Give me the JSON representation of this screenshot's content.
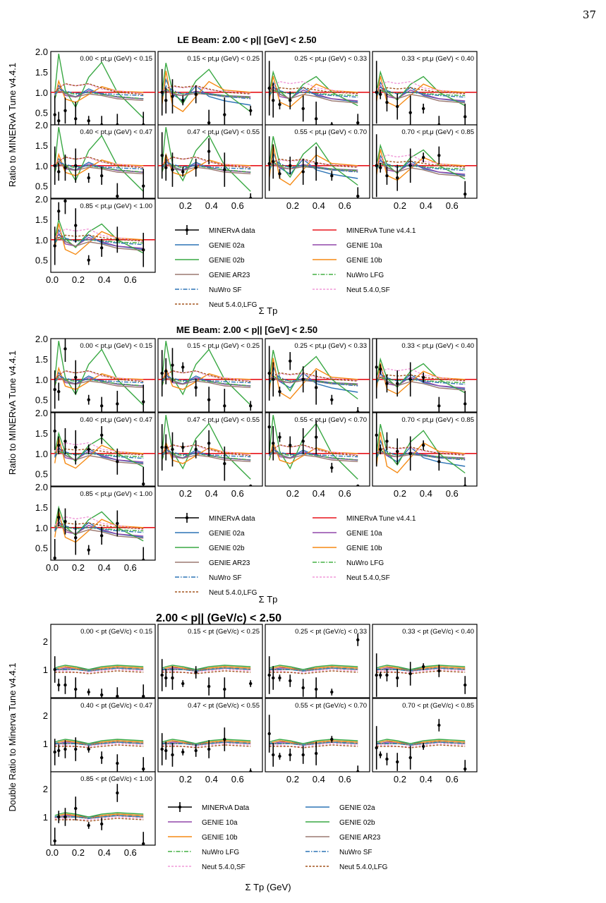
{
  "page_number": "37",
  "chart_data": [
    {
      "type": "line",
      "title": "LE Beam: 2.00 < p|| [GeV] < 2.50",
      "ylabel": "Ratio to MINERvA Tune v4.4.1",
      "xlabel": "Σ Tp",
      "ylim": [
        0.2,
        2.0
      ],
      "xlim": [
        0.0,
        0.78
      ],
      "yticks": [
        "2.0",
        "1.5",
        "1.0",
        "0.5"
      ],
      "xticks": [
        "0.2",
        "0.4",
        "0.6"
      ],
      "xticks_first": [
        "0.0",
        "0.2",
        "0.4",
        "0.6"
      ],
      "panel_labels": [
        "0.00 < pt,μ (GeV) < 0.15",
        "0.15 < pt,μ (GeV) < 0.25",
        "0.25 < pt,μ (GeV) < 0.33",
        "0.33 < pt,μ (GeV) < 0.40",
        "0.40 < pt,μ (GeV) < 0.47",
        "0.47 < pt,μ (GeV) < 0.55",
        "0.55 < pt,μ (GeV) < 0.70",
        "0.70 < pt,μ (GeV) < 0.85",
        "0.85 < pt,μ (GeV) < 1.00"
      ],
      "legend": [
        "MINERvA data",
        "MINERvA Tune v4.4.1",
        "GENIE 02a",
        "GENIE 10a",
        "GENIE 02b",
        "GENIE 10b",
        "GENIE AR23",
        "NuWro LFG",
        "NuWro SF",
        "Neut 5.4.0,SF",
        "Neut 5.4.0,LFG"
      ],
      "x": [
        0.02,
        0.05,
        0.1,
        0.18,
        0.28,
        0.38,
        0.5,
        0.7
      ],
      "data_points": [
        [
          0.45,
          0.3,
          0.55,
          0.35,
          0.3,
          0.2,
          0.15,
          0.1
        ],
        [
          1.0,
          0.8,
          0.9,
          0.8,
          0.95,
          0.25,
          0.45,
          0.55
        ],
        [
          1.1,
          0.8,
          0.7,
          0.8,
          0.6,
          0.35,
          0.15,
          0.25
        ],
        [
          1.0,
          0.95,
          0.75,
          0.65,
          0.5,
          0.6,
          0.2,
          0.4
        ],
        [
          1.0,
          0.85,
          0.95,
          1.0,
          0.7,
          0.75,
          0.25,
          0.5
        ],
        [
          1.25,
          0.95,
          0.9,
          0.85,
          0.95,
          1.35,
          0.9,
          0.2
        ],
        [
          1.05,
          1.1,
          0.8,
          1.0,
          0.85,
          1.05,
          0.75,
          0.25
        ],
        [
          1.0,
          0.95,
          0.75,
          0.7,
          1.0,
          1.2,
          1.25,
          0.3
        ],
        [
          0.85,
          1.7,
          1.95,
          1.35,
          0.5,
          0.8,
          1.0,
          0.75
        ]
      ]
    },
    {
      "type": "line",
      "title": "ME Beam: 2.00 < p|| [GeV] < 2.50",
      "ylabel": "Ratio to MINERvA Tune v4.4.1",
      "xlabel": "Σ Tp",
      "ylim": [
        0.2,
        2.0
      ],
      "xlim": [
        0.0,
        0.78
      ],
      "yticks": [
        "2.0",
        "1.5",
        "1.0",
        "0.5"
      ],
      "xticks": [
        "0.2",
        "0.4",
        "0.6"
      ],
      "xticks_first": [
        "0.0",
        "0.2",
        "0.4",
        "0.6"
      ],
      "panel_labels": [
        "0.00 < pt,μ (GeV) < 0.15",
        "0.15 < pt,μ (GeV) < 0.25",
        "0.25 < pt,μ (GeV) < 0.33",
        "0.33 < pt,μ (GeV) < 0.40",
        "0.40 < pt,μ (GeV) < 0.47",
        "0.47 < pt,μ (GeV) < 0.55",
        "0.55 < pt,μ (GeV) < 0.70",
        "0.70 < pt,μ (GeV) < 0.85",
        "0.85 < pt,μ (GeV) < 1.00"
      ],
      "legend": [
        "MINERvA data",
        "MINERvA Tune v4.4.1",
        "GENIE 02a",
        "GENIE 10a",
        "GENIE 02b",
        "GENIE 10b",
        "GENIE AR23",
        "NuWro LFG",
        "NuWro SF",
        "Neut 5.4.0,SF",
        "Neut 5.4.0,LFG"
      ],
      "x": [
        0.02,
        0.05,
        0.1,
        0.18,
        0.28,
        0.38,
        0.5,
        0.7
      ],
      "data_points": [
        [
          0.75,
          0.7,
          1.75,
          1.05,
          0.5,
          0.35,
          0.4,
          0.45
        ],
        [
          1.15,
          1.2,
          1.35,
          1.3,
          0.8,
          0.5,
          0.35,
          0.35
        ],
        [
          1.15,
          1.0,
          0.7,
          1.45,
          1.0,
          0.8,
          0.5,
          0.1
        ],
        [
          1.3,
          1.25,
          0.9,
          0.9,
          1.0,
          1.05,
          0.35,
          0.4
        ],
        [
          1.55,
          1.2,
          1.3,
          1.15,
          1.1,
          1.45,
          0.8,
          0.25
        ],
        [
          1.15,
          1.15,
          1.1,
          1.15,
          1.1,
          1.25,
          0.75,
          0.0
        ],
        [
          1.65,
          1.25,
          1.4,
          1.2,
          1.3,
          1.4,
          0.65,
          0.0
        ],
        [
          1.45,
          1.1,
          1.3,
          1.05,
          1.0,
          1.2,
          0.8,
          0.1
        ],
        [
          0.25,
          1.25,
          1.15,
          0.75,
          0.45,
          0.8,
          1.1,
          0.1
        ]
      ]
    },
    {
      "type": "line",
      "title": "2.00 < p|| (GeV/c) < 2.50",
      "ylabel": "Double Ratio to Minerva Tune v4.4.1",
      "xlabel": "Σ Tp (GeV)",
      "ylim": [
        0.0,
        2.6
      ],
      "xlim": [
        0.0,
        0.78
      ],
      "yticks": [
        "2",
        "1"
      ],
      "xticks": [
        "0.2",
        "0.4",
        "0.6"
      ],
      "xticks_first": [
        "0.0",
        "0.2",
        "0.4",
        "0.6"
      ],
      "panel_labels": [
        "0.00 < pt (GeV/c) < 0.15",
        "0.15 < pt (GeV/c) < 0.25",
        "0.25 < pt (GeV/c) < 0.33",
        "0.33 < pt (GeV/c) < 0.40",
        "0.40 < pt (GeV/c) < 0.47",
        "0.47 < pt (GeV/c) < 0.55",
        "0.55 < pt (GeV/c) < 0.70",
        "0.70 < pt (GeV/c) < 0.85",
        "0.85 < pt (GeV/c) < 1.00"
      ],
      "legend": [
        "MINERvA Data",
        "GENIE 02a",
        "GENIE 10a",
        "GENIE 02b",
        "GENIE 10b",
        "GENIE AR23",
        "NuWro LFG",
        "NuWro SF",
        "Neut 5.4.0,SF",
        "Neut 5.4.0,LFG"
      ],
      "x": [
        0.02,
        0.05,
        0.1,
        0.18,
        0.28,
        0.38,
        0.5,
        0.7
      ],
      "data_points": [
        [
          1.0,
          0.45,
          0.45,
          0.3,
          0.2,
          0.1,
          0.05,
          0.05
        ],
        [
          0.8,
          0.7,
          0.7,
          0.5,
          0.9,
          0.4,
          0.3,
          0.5
        ],
        [
          0.8,
          0.7,
          0.7,
          0.6,
          0.35,
          0.3,
          0.2,
          2.05
        ],
        [
          0.8,
          0.8,
          0.8,
          0.7,
          0.85,
          1.1,
          0.95,
          0.45
        ],
        [
          0.7,
          0.75,
          0.8,
          0.8,
          0.8,
          0.5,
          0.3,
          0.1
        ],
        [
          0.8,
          0.75,
          0.6,
          0.7,
          0.75,
          0.8,
          1.15,
          0.0
        ],
        [
          1.35,
          0.6,
          0.55,
          0.6,
          0.6,
          0.65,
          1.15,
          0.0
        ],
        [
          0.85,
          0.6,
          0.45,
          0.35,
          0.5,
          0.9,
          1.65,
          0.1
        ],
        [
          0.15,
          1.0,
          1.0,
          1.3,
          0.7,
          0.75,
          1.85,
          0.05
        ]
      ]
    }
  ],
  "series_colors": {
    "MINERvA data": "#000000",
    "MINERvA Tune v4.4.1": "#e8141b",
    "GENIE 02a": "#2c73b5",
    "GENIE 10a": "#9146aa",
    "GENIE 02b": "#39a843",
    "GENIE 10b": "#f58a13",
    "GENIE AR23": "#9b7870",
    "NuWro LFG": "#43b043",
    "NuWro SF": "#2c73b5",
    "Neut 5.4.0,SF": "#f09ad8",
    "Neut 5.4.0,LFG": "#a3551f"
  }
}
